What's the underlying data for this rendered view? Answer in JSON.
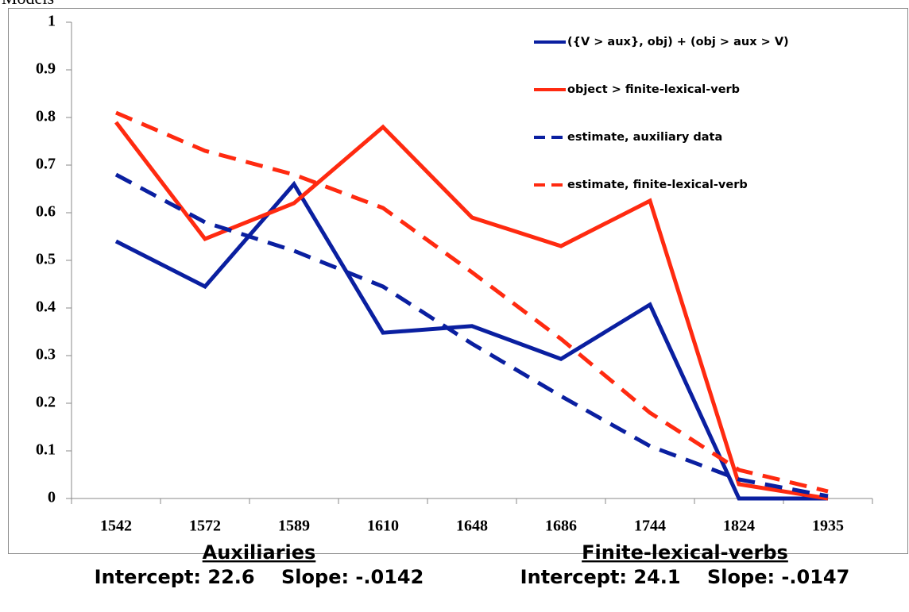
{
  "caption": "Models",
  "chart_data": {
    "type": "line",
    "categories": [
      "1542",
      "1572",
      "1589",
      "1610",
      "1648",
      "1686",
      "1744",
      "1824",
      "1935"
    ],
    "series": [
      {
        "name": "({V > aux}, obj) + (obj > aux > V)",
        "color": "#0a1fa0",
        "dashed": false,
        "values": [
          0.54,
          0.445,
          0.66,
          0.348,
          0.362,
          0.293,
          0.407,
          0,
          0
        ]
      },
      {
        "name": "object > finite-lexical-verb",
        "color": "#ff2a10",
        "dashed": false,
        "values": [
          0.79,
          0.545,
          0.62,
          0.78,
          0.59,
          0.53,
          0.625,
          0.03,
          0
        ]
      },
      {
        "name": "estimate, auxiliary data",
        "color": "#0a1fa0",
        "dashed": true,
        "values": [
          0.68,
          0.58,
          0.52,
          0.445,
          0.325,
          0.215,
          0.11,
          0.04,
          0.005
        ]
      },
      {
        "name": "estimate, finite-lexical-verb",
        "color": "#ff2a10",
        "dashed": true,
        "values": [
          0.81,
          0.73,
          0.68,
          0.61,
          0.475,
          0.335,
          0.18,
          0.06,
          0.015
        ]
      }
    ],
    "ylim": [
      0,
      1
    ],
    "yticks": [
      0,
      0.1,
      0.2,
      0.3,
      0.4,
      0.5,
      0.6,
      0.7,
      0.8,
      0.9,
      1
    ],
    "grid": false,
    "legend": "upper right"
  },
  "footer": {
    "left": {
      "title": "Auxiliaries",
      "stats": "Intercept: 22.6    Slope: -.0142"
    },
    "right": {
      "title": "Finite-lexical-verbs",
      "stats": "Intercept: 24.1    Slope: -.0147"
    }
  }
}
